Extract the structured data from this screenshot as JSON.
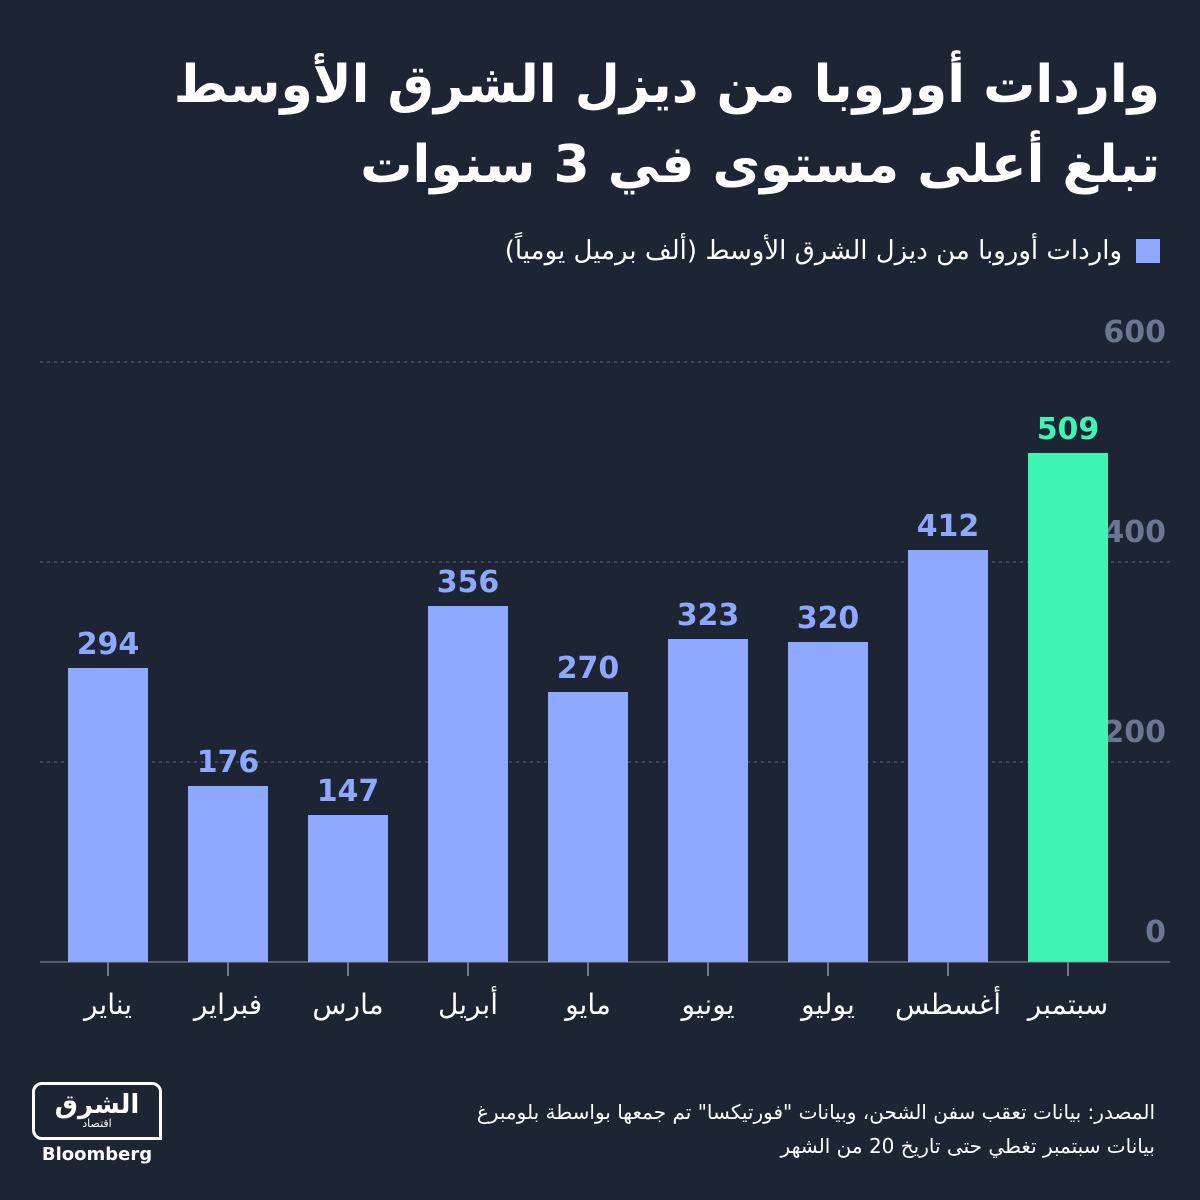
{
  "chart_data": {
    "type": "bar",
    "title": [
      "واردات أوروبا من ديزل الشرق الأوسط",
      "تبلغ أعلى مستوى في 3 سنوات"
    ],
    "legend": "واردات أوروبا من ديزل الشرق الأوسط (ألف برميل يومياً)",
    "categories": [
      "يناير",
      "فبراير",
      "مارس",
      "أبريل",
      "مايو",
      "يونيو",
      "يوليو",
      "أغسطس",
      "سبتمبر"
    ],
    "values": [
      294,
      176,
      147,
      356,
      270,
      323,
      320,
      412,
      509
    ],
    "colors": [
      "#8ea8ff",
      "#8ea8ff",
      "#8ea8ff",
      "#8ea8ff",
      "#8ea8ff",
      "#8ea8ff",
      "#8ea8ff",
      "#8ea8ff",
      "#3ff5b4"
    ],
    "ylim": [
      0,
      600
    ],
    "yticks": [
      0,
      200,
      400,
      600
    ],
    "grid": true,
    "source": [
      "المصدر: بيانات تعقب سفن الشحن، وبيانات \"فورتيكسا\" تم جمعها بواسطة بلومبرغ",
      "بيانات سبتمبر تغطي حتى تاريخ 20 من الشهر"
    ],
    "logo": [
      "الشرق",
      "اقتصاد",
      "Bloomberg"
    ]
  }
}
